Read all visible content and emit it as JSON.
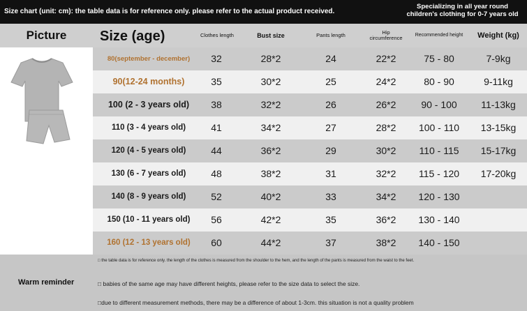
{
  "top_bar": {
    "note": "Size chart (unit: cm): the table data is for reference only. please refer to the actual product received.",
    "specialty_line1": "Specializing in all year round",
    "specialty_line2": "children's clothing for 0-7 years old"
  },
  "header": {
    "picture": "Picture",
    "size": "Size (age)",
    "clothes_length": "Clothes length",
    "bust_size": "Bust size",
    "pants_length": "Pants length",
    "hip_line1": "Hip",
    "hip_line2": "circumference",
    "recommended_height": "Recommended height",
    "weight": "Weight (kg)"
  },
  "product_image": "gray-tshirt-and-shorts-set",
  "rows": [
    {
      "size": "80(september - december)",
      "clothes": "32",
      "bust": "28*2",
      "pants": "24",
      "hip": "22*2",
      "height": "75 - 80",
      "weight": "7-9kg"
    },
    {
      "size": "90(12-24 months)",
      "clothes": "35",
      "bust": "30*2",
      "pants": "25",
      "hip": "24*2",
      "height": "80 - 90",
      "weight": "9-11kg"
    },
    {
      "size": "100 (2 - 3 years old)",
      "clothes": "38",
      "bust": "32*2",
      "pants": "26",
      "hip": "26*2",
      "height": "90 - 100",
      "weight": "11-13kg"
    },
    {
      "size": "110 (3 - 4 years old)",
      "clothes": "41",
      "bust": "34*2",
      "pants": "27",
      "hip": "28*2",
      "height": "100 - 110",
      "weight": "13-15kg"
    },
    {
      "size": "120 (4 - 5 years old)",
      "clothes": "44",
      "bust": "36*2",
      "pants": "29",
      "hip": "30*2",
      "height": "110 - 115",
      "weight": "15-17kg"
    },
    {
      "size": "130 (6 - 7 years old)",
      "clothes": "48",
      "bust": "38*2",
      "pants": "31",
      "hip": "32*2",
      "height": "115 - 120",
      "weight": "17-20kg"
    },
    {
      "size": "140 (8 - 9 years old)",
      "clothes": "52",
      "bust": "40*2",
      "pants": "33",
      "hip": "34*2",
      "height": "120 - 130",
      "weight": ""
    },
    {
      "size": "150 (10 - 11 years old)",
      "clothes": "56",
      "bust": "42*2",
      "pants": "35",
      "hip": "36*2",
      "height": "130 - 140",
      "weight": ""
    },
    {
      "size": "160 (12 - 13 years old)",
      "clothes": "60",
      "bust": "44*2",
      "pants": "37",
      "hip": "38*2",
      "height": "140 - 150",
      "weight": ""
    }
  ],
  "footer": {
    "warm_reminder": "Warm reminder",
    "note1": "□ the table data is for reference only. the length of the clothes is measured from the shoulder to the hem, and the length of the pants is measured from the waist to the feet.",
    "note2": "□ babies of the same age may have different heights, please refer to the size data to select the size.",
    "note3": "□due to different measurement methods, there may be a difference of about 1-3cm. this situation is not a quality problem"
  },
  "colors": {
    "top_bar": "#111111",
    "row_dark": "#cbcbcb",
    "row_light": "#f0f0f0",
    "accent_orange": "#b07230",
    "garment_gray": "#b4b4b4"
  }
}
